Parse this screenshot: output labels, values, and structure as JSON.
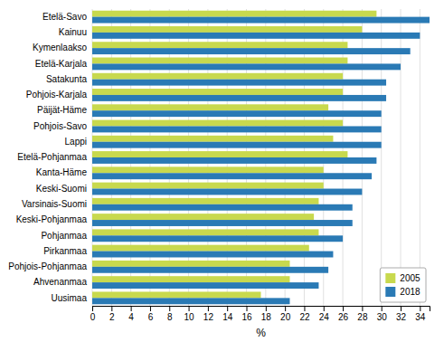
{
  "chart_data": {
    "type": "bar",
    "orientation": "horizontal",
    "categories": [
      "Etelä-Savo",
      "Kainuu",
      "Kymenlaakso",
      "Etelä-Karjala",
      "Satakunta",
      "Pohjois-Karjala",
      "Päijät-Häme",
      "Pohjois-Savo",
      "Lappi",
      "Etelä-Pohjanmaa",
      "Kanta-Häme",
      "Keski-Suomi",
      "Varsinais-Suomi",
      "Keski-Pohjanmaa",
      "Pohjanmaa",
      "Pirkanmaa",
      "Pohjois-Pohjanmaa",
      "Ahvenanmaa",
      "Uusimaa"
    ],
    "series": [
      {
        "name": "2005",
        "color": "#c8d94e",
        "values": [
          29.5,
          28.0,
          26.5,
          26.5,
          26.0,
          26.0,
          24.5,
          26.0,
          25.0,
          26.5,
          24.0,
          24.0,
          23.5,
          23.0,
          23.5,
          22.5,
          20.5,
          20.5,
          17.5
        ]
      },
      {
        "name": "2018",
        "color": "#2a7ab5",
        "values": [
          35.0,
          34.0,
          33.0,
          32.0,
          30.5,
          30.5,
          30.0,
          30.0,
          30.0,
          29.5,
          29.0,
          28.0,
          27.0,
          27.0,
          26.0,
          25.0,
          24.5,
          23.5,
          20.5
        ]
      }
    ],
    "xlabel": "%",
    "xlim": [
      0,
      35
    ],
    "xticks": [
      0,
      2,
      4,
      6,
      8,
      10,
      12,
      14,
      16,
      18,
      20,
      22,
      24,
      26,
      28,
      30,
      32,
      34
    ],
    "grid": true,
    "legend": "lower right"
  }
}
